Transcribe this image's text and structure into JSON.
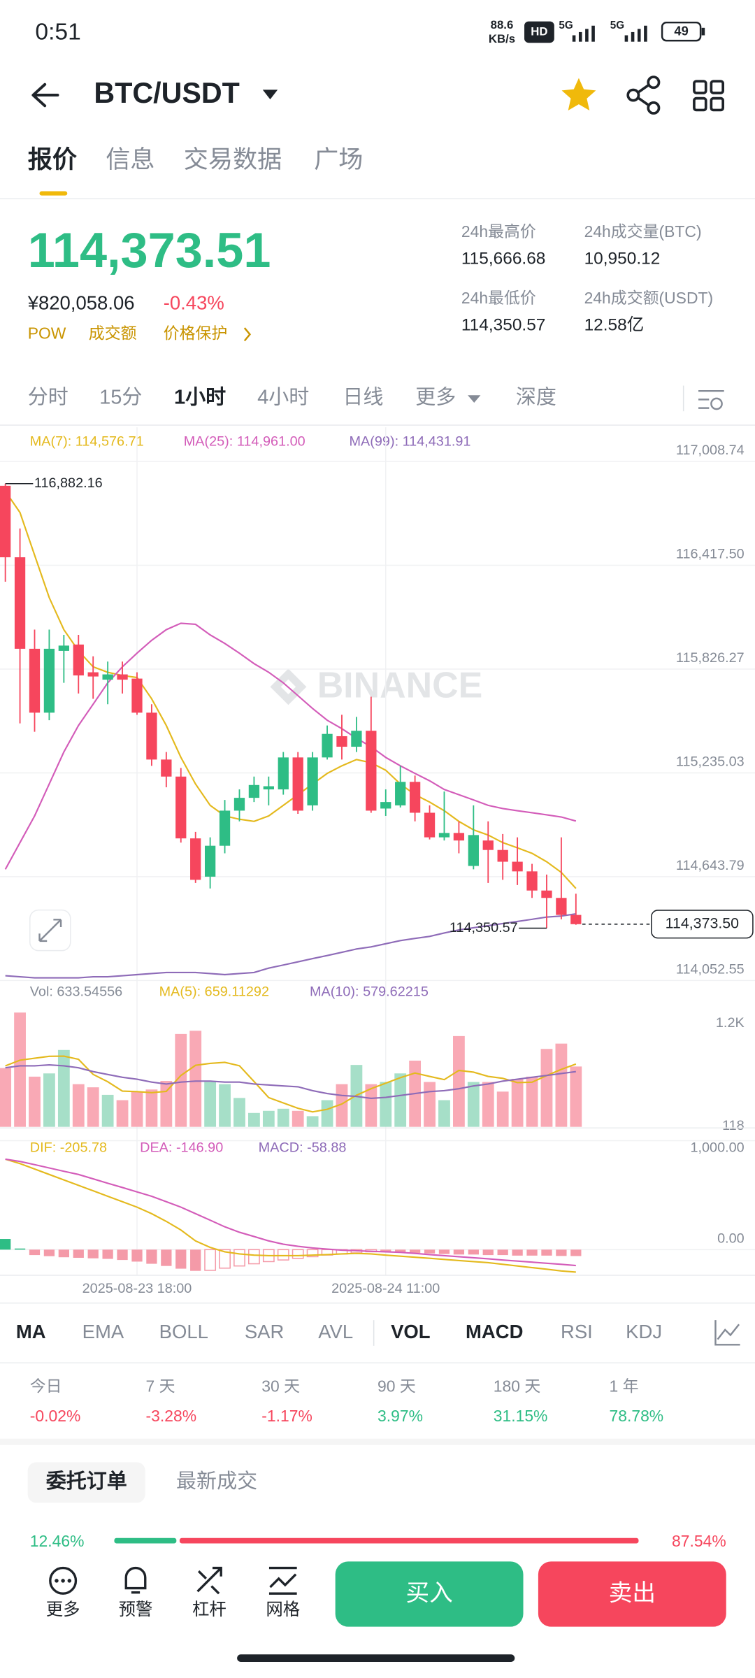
{
  "status_bar": {
    "time": "0:51",
    "net_speed": "88.6",
    "net_unit": "KB/s",
    "badge": "HD",
    "network": [
      "5G",
      "5G"
    ],
    "battery": "49"
  },
  "header": {
    "pair": "BTC/USDT"
  },
  "tabs": {
    "items": [
      "报价",
      "信息",
      "交易数据",
      "广场"
    ],
    "active": 0
  },
  "quote": {
    "last": "114,373.51",
    "fiat": "¥820,058.06",
    "change": "-0.43%",
    "tags": [
      "POW",
      "成交额",
      "价格保护"
    ]
  },
  "stats": [
    {
      "label": "24h最高价",
      "value": "115,666.68"
    },
    {
      "label": "24h成交量(BTC)",
      "value": "10,950.12"
    },
    {
      "label": "24h最低价",
      "value": "114,350.57"
    },
    {
      "label": "24h成交额(USDT)",
      "value": "12.58亿"
    }
  ],
  "intervals": {
    "items": [
      "分时",
      "15分",
      "1小时",
      "4小时",
      "日线",
      "更多",
      "深度"
    ],
    "active": 2
  },
  "watermark": "BINANCE",
  "chart_data": [
    {
      "type": "candlestick",
      "up_color": "#2ebd85",
      "down_color": "#f6465d",
      "categories": [
        null,
        null,
        null,
        null,
        null,
        null,
        null,
        null,
        null,
        "2025-08-23 18:00",
        null,
        null,
        null,
        null,
        null,
        null,
        null,
        null,
        null,
        null,
        null,
        null,
        null,
        null,
        null,
        null,
        "2025-08-24 11:00",
        null,
        null,
        null,
        null,
        null,
        null,
        null,
        null,
        null,
        null,
        null,
        null,
        null
      ],
      "candles": [
        {
          "open": 116870,
          "high": 116882.16,
          "low": 116324,
          "close": 116463
        },
        {
          "open": 116463,
          "high": 116627,
          "low": 115517,
          "close": 115942
        },
        {
          "open": 115942,
          "high": 116051,
          "low": 115469,
          "close": 115578
        },
        {
          "open": 115578,
          "high": 116051,
          "low": 115535,
          "close": 115942
        },
        {
          "open": 115930,
          "high": 116021,
          "low": 115748,
          "close": 115960
        },
        {
          "open": 115966,
          "high": 116021,
          "low": 115687,
          "close": 115790
        },
        {
          "open": 115808,
          "high": 115899,
          "low": 115657,
          "close": 115784
        },
        {
          "open": 115766,
          "high": 115869,
          "low": 115626,
          "close": 115796
        },
        {
          "open": 115796,
          "high": 115869,
          "low": 115687,
          "close": 115766
        },
        {
          "open": 115772,
          "high": 115808,
          "low": 115566,
          "close": 115578
        },
        {
          "open": 115578,
          "high": 115626,
          "low": 115275,
          "close": 115311
        },
        {
          "open": 115311,
          "high": 115354,
          "low": 115153,
          "close": 115214
        },
        {
          "open": 115214,
          "high": 115263,
          "low": 114838,
          "close": 114862
        },
        {
          "open": 114862,
          "high": 114899,
          "low": 114608,
          "close": 114626
        },
        {
          "open": 114644,
          "high": 114868,
          "low": 114577,
          "close": 114820
        },
        {
          "open": 114820,
          "high": 115081,
          "low": 114777,
          "close": 115020
        },
        {
          "open": 115020,
          "high": 115141,
          "low": 114959,
          "close": 115093
        },
        {
          "open": 115093,
          "high": 115214,
          "low": 115069,
          "close": 115166
        },
        {
          "open": 115141,
          "high": 115214,
          "low": 115050,
          "close": 115159
        },
        {
          "open": 115141,
          "high": 115354,
          "low": 115111,
          "close": 115323
        },
        {
          "open": 115323,
          "high": 115354,
          "low": 115002,
          "close": 115020
        },
        {
          "open": 115050,
          "high": 115354,
          "low": 115020,
          "close": 115323
        },
        {
          "open": 115323,
          "high": 115505,
          "low": 115311,
          "close": 115457
        },
        {
          "open": 115444,
          "high": 115566,
          "low": 115311,
          "close": 115384
        },
        {
          "open": 115384,
          "high": 115554,
          "low": 115354,
          "close": 115475
        },
        {
          "open": 115475,
          "high": 115669,
          "low": 115008,
          "close": 115020
        },
        {
          "open": 115032,
          "high": 115141,
          "low": 114990,
          "close": 115069
        },
        {
          "open": 115050,
          "high": 115275,
          "low": 115038,
          "close": 115184
        },
        {
          "open": 115184,
          "high": 115220,
          "low": 114959,
          "close": 115008
        },
        {
          "open": 115008,
          "high": 115050,
          "low": 114856,
          "close": 114868
        },
        {
          "open": 114868,
          "high": 115129,
          "low": 114850,
          "close": 114893
        },
        {
          "open": 114893,
          "high": 114959,
          "low": 114777,
          "close": 114850
        },
        {
          "open": 114705,
          "high": 115050,
          "low": 114686,
          "close": 114881
        },
        {
          "open": 114850,
          "high": 114959,
          "low": 114608,
          "close": 114796
        },
        {
          "open": 114796,
          "high": 114887,
          "low": 114626,
          "close": 114729
        },
        {
          "open": 114729,
          "high": 114868,
          "low": 114596,
          "close": 114674
        },
        {
          "open": 114674,
          "high": 114717,
          "low": 114523,
          "close": 114565
        },
        {
          "open": 114565,
          "high": 114656,
          "low": 114350.57,
          "close": 114523
        },
        {
          "open": 114523,
          "high": 114868,
          "low": 114401,
          "close": 114426
        },
        {
          "open": 114426,
          "high": 114547,
          "low": 114370,
          "close": 114373.5
        }
      ],
      "series": [
        {
          "label": "MA(7): 114,576.71",
          "color": "#e4b91d",
          "values": [
            116839,
            116718,
            116475,
            116233,
            116051,
            115930,
            115839,
            115808,
            115790,
            115778,
            115657,
            115505,
            115323,
            115172,
            115050,
            114990,
            114971,
            114959,
            114990,
            115050,
            115111,
            115172,
            115232,
            115275,
            115311,
            115293,
            115250,
            115172,
            115111,
            115069,
            115020,
            114959,
            114911,
            114881,
            114838,
            114808,
            114777,
            114729,
            114668,
            114576.71
          ]
        },
        {
          "label": "MA(25): 114,961.00",
          "color": "#d35cb9",
          "values": [
            114686,
            114838,
            114990,
            115172,
            115354,
            115505,
            115626,
            115748,
            115839,
            115917,
            115990,
            116051,
            116087,
            116081,
            116021,
            115972,
            115917,
            115857,
            115808,
            115748,
            115675,
            115602,
            115535,
            115487,
            115432,
            115384,
            115323,
            115275,
            115232,
            115190,
            115141,
            115111,
            115081,
            115050,
            115032,
            115020,
            115008,
            114996,
            114984,
            114961.0
          ]
        },
        {
          "label": "MA(99): 114,431.91",
          "color": "#8e6bb8",
          "values": [
            114080,
            114074,
            114068,
            114068,
            114068,
            114068,
            114074,
            114074,
            114080,
            114086,
            114092,
            114098,
            114098,
            114098,
            114092,
            114086,
            114092,
            114098,
            114123,
            114141,
            114159,
            114177,
            114195,
            114213,
            114232,
            114244,
            114262,
            114280,
            114292,
            114304,
            114323,
            114341,
            114353,
            114365,
            114377,
            114389,
            114401,
            114414,
            114420,
            114431.91
          ]
        }
      ],
      "ylim": [
        114052.55,
        117008.74
      ],
      "yticks": [
        {
          "value": 117008.74,
          "label": "117,008.74"
        },
        {
          "value": 116417.5,
          "label": "116,417.50"
        },
        {
          "value": 115826.27,
          "label": "115,826.27"
        },
        {
          "value": 115235.03,
          "label": "115,235.03"
        },
        {
          "value": 114643.79,
          "label": "114,643.79"
        },
        {
          "value": 114052.55,
          "label": "114,052.55"
        }
      ],
      "grid": true,
      "annotations": {
        "high": "116,882.16",
        "low": "114,350.57",
        "last": "114,373.50"
      }
    },
    {
      "type": "bar",
      "label": "Vol: 633.54556",
      "values": [
        617,
        1200,
        527,
        561,
        807,
        448,
        415,
        336,
        280,
        370,
        392,
        482,
        975,
        1009,
        471,
        448,
        303,
        146,
        168,
        190,
        168,
        112,
        280,
        448,
        650,
        448,
        471,
        561,
        695,
        471,
        280,
        953,
        471,
        471,
        370,
        504,
        527,
        818,
        874,
        633.54556
      ],
      "series": [
        {
          "label": "MA(5): 659.11292",
          "color": "#e4b91d",
          "values": [
            640,
            700,
            720,
            740,
            742,
            709,
            551,
            473,
            376,
            370,
            359,
            372,
            540,
            646,
            666,
            677,
            641,
            475,
            307,
            251,
            195,
            157,
            184,
            240,
            332,
            400,
            459,
            516,
            565,
            529,
            496,
            592,
            574,
            529,
            509,
            464,
            469,
            538,
            603,
            659.11292
          ]
        },
        {
          "label": "MA(10): 579.62215",
          "color": "#8e6bb8",
          "values": [
            620,
            640,
            640,
            650,
            640,
            620,
            580,
            550,
            520,
            500,
            470,
            450,
            470,
            480,
            480,
            470,
            470,
            450,
            440,
            430,
            420,
            380,
            350,
            330,
            320,
            300,
            310,
            330,
            350,
            370,
            380,
            400,
            430,
            450,
            480,
            500,
            520,
            540,
            560,
            579.62215
          ]
        }
      ],
      "up_color": "#a6dfc8",
      "down_color": "#f9a9b5",
      "ylim": [
        0,
        1200
      ],
      "yticks": [
        {
          "value": 1200,
          "label": "1.2K"
        },
        118
      ]
    },
    {
      "type": "macd",
      "histogram": {
        "label": "MACD: -58.88",
        "color": "#8e6bb8",
        "up_color": "#2ebd85",
        "down_color": "#f49aa8",
        "values": [
          98,
          10,
          -50,
          -60,
          -70,
          -75,
          -80,
          -85,
          -95,
          -110,
          -130,
          -150,
          -175,
          -195,
          -190,
          -170,
          -150,
          -130,
          -110,
          -95,
          -80,
          -65,
          -50,
          -40,
          -30,
          -20,
          -20,
          -25,
          -30,
          -35,
          -40,
          -45,
          -45,
          -50,
          -50,
          -55,
          -55,
          -55,
          -58,
          -58.88
        ]
      },
      "series": [
        {
          "label": "DIF: -205.78",
          "color": "#e4b91d",
          "values": [
            830,
            790,
            740,
            690,
            640,
            590,
            540,
            490,
            440,
            390,
            330,
            260,
            180,
            80,
            20,
            -20,
            -40,
            -50,
            -55,
            -55,
            -55,
            -50,
            -45,
            -40,
            -35,
            -40,
            -50,
            -60,
            -70,
            -80,
            -90,
            -100,
            -110,
            -120,
            -135,
            -150,
            -165,
            -180,
            -195,
            -205.78
          ]
        },
        {
          "label": "DEA: -146.90",
          "color": "#d35cb9",
          "values": [
            830,
            810,
            780,
            750,
            720,
            690,
            650,
            610,
            570,
            530,
            490,
            440,
            390,
            330,
            270,
            210,
            160,
            120,
            80,
            50,
            30,
            15,
            5,
            -5,
            -10,
            -15,
            -20,
            -25,
            -35,
            -45,
            -55,
            -65,
            -75,
            -85,
            -95,
            -105,
            -115,
            -125,
            -135,
            -146.9
          ]
        }
      ],
      "ylim": [
        -220,
        1000
      ],
      "yticks": [
        {
          "value": 1000,
          "label": "1,000.00"
        },
        {
          "value": 0,
          "label": "0.00"
        }
      ]
    }
  ],
  "indicators": {
    "items": [
      "MA",
      "EMA",
      "BOLL",
      "SAR",
      "AVL",
      "VOL",
      "MACD",
      "RSI",
      "KDJ"
    ],
    "active": [
      0,
      5,
      6
    ]
  },
  "performance": [
    {
      "label": "今日",
      "value": "-0.02%"
    },
    {
      "label": "7 天",
      "value": "-3.28%"
    },
    {
      "label": "30 天",
      "value": "-1.17%"
    },
    {
      "label": "90 天",
      "value": "3.97%"
    },
    {
      "label": "180 天",
      "value": "31.15%"
    },
    {
      "label": "1 年",
      "value": "78.78%"
    }
  ],
  "orders": {
    "tabs": [
      "委托订单",
      "最新成交"
    ],
    "ratio": {
      "values": [
        12.46,
        87.54
      ],
      "value_labels": [
        "12.46%",
        "87.54%"
      ]
    }
  },
  "nav": {
    "items": [
      "更多",
      "预警",
      "杠杆",
      "网格"
    ],
    "buy": "买入",
    "sell": "卖出"
  }
}
